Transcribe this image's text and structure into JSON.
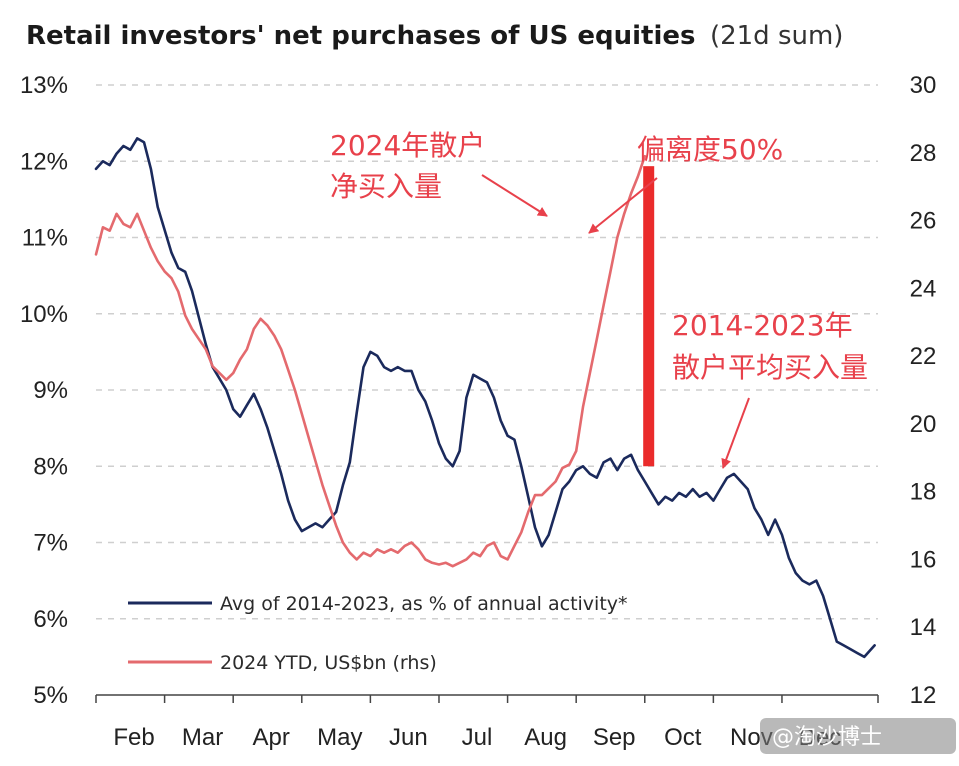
{
  "chart_data": {
    "type": "line",
    "title": "Retail investors' net purchases of US equities",
    "subtitle": "(21d sum)",
    "x_ticks": [
      "Feb",
      "Mar",
      "Apr",
      "May",
      "Jun",
      "Jul",
      "Aug",
      "Sep",
      "Oct",
      "Nov",
      "Dec"
    ],
    "x_range": [
      0,
      11.4
    ],
    "y_left": {
      "ticks": [
        "13%",
        "12%",
        "11%",
        "10%",
        "9%",
        "8%",
        "7%",
        "6%",
        "5%"
      ],
      "range": [
        5,
        13
      ]
    },
    "y_right": {
      "ticks": [
        "30",
        "28",
        "26",
        "24",
        "22",
        "20",
        "18",
        "16",
        "14",
        "12"
      ],
      "range": [
        12,
        30
      ]
    },
    "grid": "horizontal-dashed",
    "legend_position": "bottom-left",
    "series": [
      {
        "name": "Avg of 2014-2023, as % of annual activity*",
        "color": "#1b2a5c",
        "axis": "left",
        "points": [
          [
            0.0,
            11.9
          ],
          [
            0.1,
            12.0
          ],
          [
            0.2,
            11.95
          ],
          [
            0.3,
            12.1
          ],
          [
            0.4,
            12.2
          ],
          [
            0.5,
            12.15
          ],
          [
            0.6,
            12.3
          ],
          [
            0.7,
            12.25
          ],
          [
            0.8,
            11.9
          ],
          [
            0.9,
            11.4
          ],
          [
            1.0,
            11.1
          ],
          [
            1.1,
            10.8
          ],
          [
            1.2,
            10.6
          ],
          [
            1.3,
            10.55
          ],
          [
            1.4,
            10.3
          ],
          [
            1.5,
            9.95
          ],
          [
            1.6,
            9.6
          ],
          [
            1.7,
            9.3
          ],
          [
            1.8,
            9.15
          ],
          [
            1.9,
            9.0
          ],
          [
            2.0,
            8.75
          ],
          [
            2.1,
            8.65
          ],
          [
            2.2,
            8.8
          ],
          [
            2.3,
            8.95
          ],
          [
            2.4,
            8.75
          ],
          [
            2.5,
            8.5
          ],
          [
            2.6,
            8.2
          ],
          [
            2.7,
            7.9
          ],
          [
            2.8,
            7.55
          ],
          [
            2.9,
            7.3
          ],
          [
            3.0,
            7.15
          ],
          [
            3.1,
            7.2
          ],
          [
            3.2,
            7.25
          ],
          [
            3.3,
            7.2
          ],
          [
            3.4,
            7.3
          ],
          [
            3.5,
            7.4
          ],
          [
            3.6,
            7.75
          ],
          [
            3.7,
            8.05
          ],
          [
            3.8,
            8.7
          ],
          [
            3.9,
            9.3
          ],
          [
            4.0,
            9.5
          ],
          [
            4.1,
            9.45
          ],
          [
            4.2,
            9.3
          ],
          [
            4.3,
            9.25
          ],
          [
            4.4,
            9.3
          ],
          [
            4.5,
            9.25
          ],
          [
            4.6,
            9.25
          ],
          [
            4.7,
            9.0
          ],
          [
            4.8,
            8.85
          ],
          [
            4.9,
            8.6
          ],
          [
            5.0,
            8.3
          ],
          [
            5.1,
            8.1
          ],
          [
            5.2,
            8.0
          ],
          [
            5.3,
            8.2
          ],
          [
            5.4,
            8.9
          ],
          [
            5.5,
            9.2
          ],
          [
            5.6,
            9.15
          ],
          [
            5.7,
            9.1
          ],
          [
            5.8,
            8.9
          ],
          [
            5.9,
            8.6
          ],
          [
            6.0,
            8.4
          ],
          [
            6.1,
            8.35
          ],
          [
            6.2,
            8.0
          ],
          [
            6.3,
            7.6
          ],
          [
            6.4,
            7.2
          ],
          [
            6.5,
            6.95
          ],
          [
            6.6,
            7.1
          ],
          [
            6.7,
            7.4
          ],
          [
            6.8,
            7.7
          ],
          [
            6.9,
            7.8
          ],
          [
            7.0,
            7.95
          ],
          [
            7.1,
            8.0
          ],
          [
            7.2,
            7.9
          ],
          [
            7.3,
            7.85
          ],
          [
            7.4,
            8.05
          ],
          [
            7.5,
            8.1
          ],
          [
            7.6,
            7.95
          ],
          [
            7.7,
            8.1
          ],
          [
            7.8,
            8.15
          ],
          [
            7.9,
            7.95
          ],
          [
            8.0,
            7.8
          ],
          [
            8.1,
            7.65
          ],
          [
            8.2,
            7.5
          ],
          [
            8.3,
            7.6
          ],
          [
            8.4,
            7.55
          ],
          [
            8.5,
            7.65
          ],
          [
            8.6,
            7.6
          ],
          [
            8.7,
            7.7
          ],
          [
            8.8,
            7.6
          ],
          [
            8.9,
            7.65
          ],
          [
            9.0,
            7.55
          ],
          [
            9.1,
            7.7
          ],
          [
            9.2,
            7.85
          ],
          [
            9.3,
            7.9
          ],
          [
            9.4,
            7.8
          ],
          [
            9.5,
            7.7
          ],
          [
            9.6,
            7.45
          ],
          [
            9.7,
            7.3
          ],
          [
            9.8,
            7.1
          ],
          [
            9.9,
            7.3
          ],
          [
            10.0,
            7.1
          ],
          [
            10.1,
            6.8
          ],
          [
            10.2,
            6.6
          ],
          [
            10.3,
            6.5
          ],
          [
            10.4,
            6.45
          ],
          [
            10.5,
            6.5
          ],
          [
            10.6,
            6.3
          ],
          [
            10.7,
            6.0
          ],
          [
            10.8,
            5.7
          ],
          [
            10.9,
            5.65
          ],
          [
            11.0,
            5.6
          ],
          [
            11.1,
            5.55
          ],
          [
            11.2,
            5.5
          ],
          [
            11.3,
            5.6
          ],
          [
            11.35,
            5.65
          ]
        ]
      },
      {
        "name": "2024 YTD, US$bn (rhs)",
        "color": "#e46a6e",
        "axis": "right",
        "points": [
          [
            0.0,
            25.0
          ],
          [
            0.1,
            25.8
          ],
          [
            0.2,
            25.7
          ],
          [
            0.3,
            26.2
          ],
          [
            0.4,
            25.9
          ],
          [
            0.5,
            25.8
          ],
          [
            0.6,
            26.2
          ],
          [
            0.7,
            25.7
          ],
          [
            0.8,
            25.2
          ],
          [
            0.9,
            24.8
          ],
          [
            1.0,
            24.5
          ],
          [
            1.1,
            24.3
          ],
          [
            1.2,
            23.9
          ],
          [
            1.3,
            23.2
          ],
          [
            1.4,
            22.8
          ],
          [
            1.5,
            22.5
          ],
          [
            1.6,
            22.2
          ],
          [
            1.7,
            21.7
          ],
          [
            1.8,
            21.5
          ],
          [
            1.9,
            21.3
          ],
          [
            2.0,
            21.5
          ],
          [
            2.1,
            21.9
          ],
          [
            2.2,
            22.2
          ],
          [
            2.3,
            22.8
          ],
          [
            2.4,
            23.1
          ],
          [
            2.5,
            22.9
          ],
          [
            2.6,
            22.6
          ],
          [
            2.7,
            22.2
          ],
          [
            2.8,
            21.6
          ],
          [
            2.9,
            21.0
          ],
          [
            3.0,
            20.3
          ],
          [
            3.1,
            19.6
          ],
          [
            3.2,
            18.9
          ],
          [
            3.3,
            18.2
          ],
          [
            3.4,
            17.6
          ],
          [
            3.5,
            17.0
          ],
          [
            3.6,
            16.5
          ],
          [
            3.7,
            16.2
          ],
          [
            3.8,
            16.0
          ],
          [
            3.9,
            16.2
          ],
          [
            4.0,
            16.1
          ],
          [
            4.1,
            16.3
          ],
          [
            4.2,
            16.2
          ],
          [
            4.3,
            16.3
          ],
          [
            4.4,
            16.2
          ],
          [
            4.5,
            16.4
          ],
          [
            4.6,
            16.5
          ],
          [
            4.7,
            16.3
          ],
          [
            4.8,
            16.0
          ],
          [
            4.9,
            15.9
          ],
          [
            5.0,
            15.85
          ],
          [
            5.1,
            15.9
          ],
          [
            5.2,
            15.8
          ],
          [
            5.3,
            15.9
          ],
          [
            5.4,
            16.0
          ],
          [
            5.5,
            16.2
          ],
          [
            5.6,
            16.1
          ],
          [
            5.7,
            16.4
          ],
          [
            5.8,
            16.5
          ],
          [
            5.9,
            16.1
          ],
          [
            6.0,
            16.0
          ],
          [
            6.1,
            16.4
          ],
          [
            6.2,
            16.8
          ],
          [
            6.3,
            17.4
          ],
          [
            6.4,
            17.9
          ],
          [
            6.5,
            17.9
          ],
          [
            6.6,
            18.1
          ],
          [
            6.7,
            18.3
          ],
          [
            6.8,
            18.7
          ],
          [
            6.9,
            18.8
          ],
          [
            7.0,
            19.2
          ],
          [
            7.1,
            20.5
          ],
          [
            7.2,
            21.5
          ],
          [
            7.3,
            22.5
          ],
          [
            7.4,
            23.5
          ],
          [
            7.5,
            24.5
          ],
          [
            7.6,
            25.5
          ],
          [
            7.7,
            26.2
          ],
          [
            7.8,
            26.8
          ],
          [
            7.9,
            27.3
          ],
          [
            8.0,
            27.9
          ]
        ]
      }
    ],
    "annotations": [
      {
        "lines": [
          "2024年散户",
          "净买入量"
        ]
      },
      {
        "lines": [
          "偏离度50%"
        ]
      },
      {
        "lines": [
          "2014-2023年",
          "散户平均买入量"
        ]
      }
    ]
  },
  "watermark": "@淘沙博士"
}
